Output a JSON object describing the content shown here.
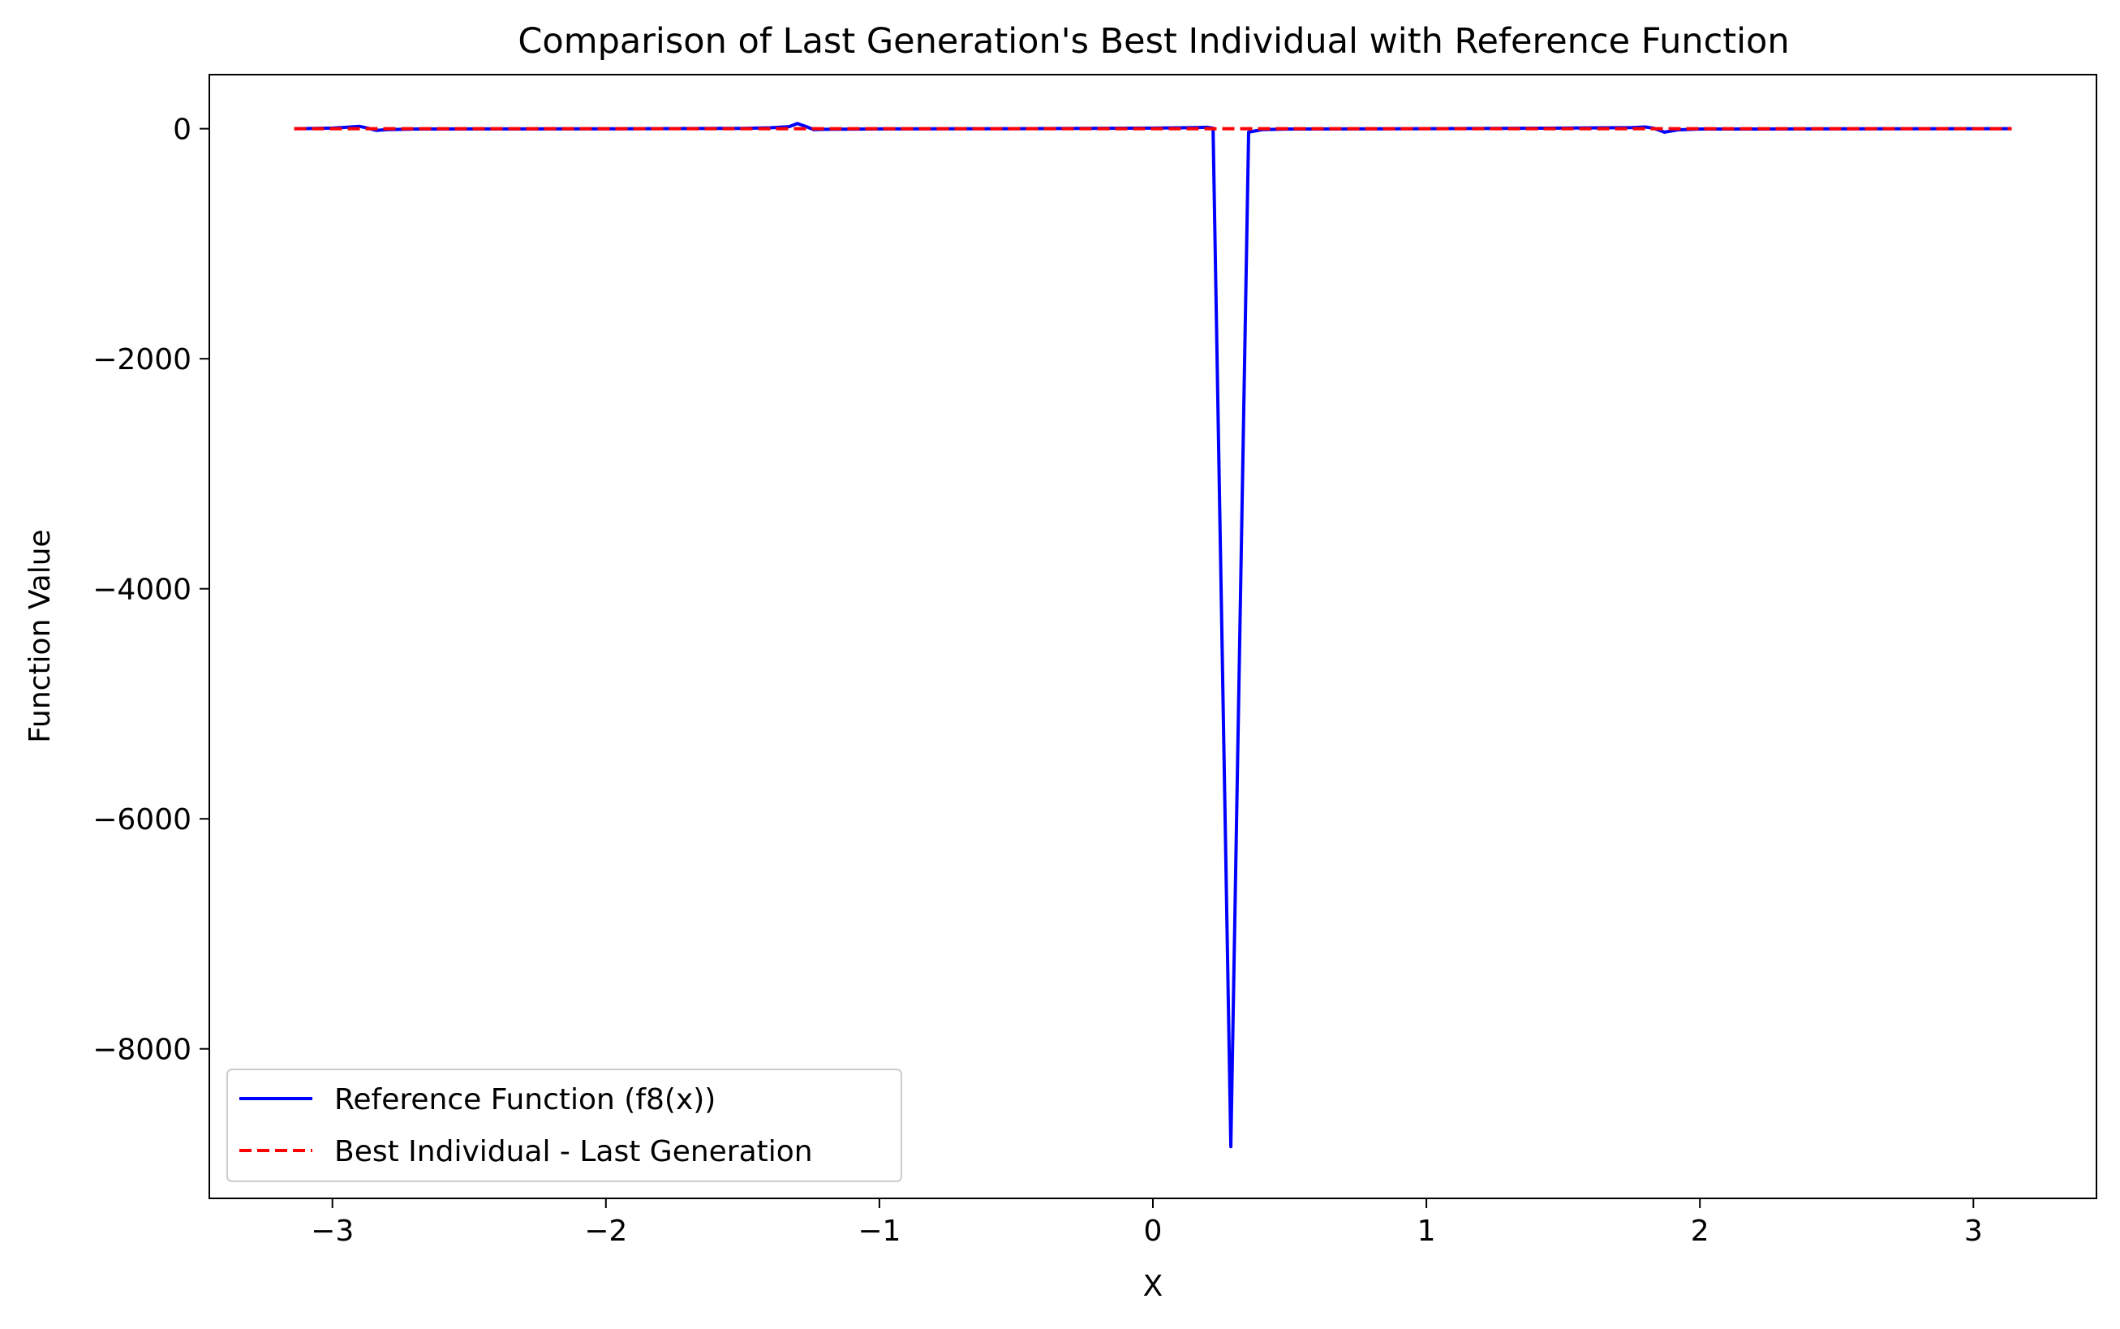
{
  "chart_data": {
    "type": "line",
    "title": "Comparison of Last Generation's Best Individual with Reference Function",
    "xlabel": "X",
    "ylabel": "Function Value",
    "xlim": [
      -3.45,
      3.45
    ],
    "ylim": [
      -9300,
      470
    ],
    "xticks": [
      -3,
      -2,
      -1,
      0,
      1,
      2,
      3
    ],
    "xtick_labels": [
      "−3",
      "−2",
      "−1",
      "0",
      "1",
      "2",
      "3"
    ],
    "yticks": [
      -8000,
      -6000,
      -4000,
      -2000,
      0
    ],
    "ytick_labels": [
      "−8000",
      "−6000",
      "−4000",
      "−2000",
      "0"
    ],
    "grid": false,
    "legend_position": "lower-left",
    "series": [
      {
        "name": "Reference Function (f8(x))",
        "color": "#0000ff",
        "style": "solid",
        "x": [
          -3.14,
          -3.0,
          -2.95,
          -2.9,
          -2.87,
          -2.84,
          -2.8,
          -2.7,
          -2.5,
          -2.0,
          -1.5,
          -1.4,
          -1.33,
          -1.3,
          -1.27,
          -1.24,
          -1.2,
          -1.0,
          -0.5,
          0.0,
          0.1,
          0.15,
          0.2,
          0.22,
          0.285,
          0.35,
          0.4,
          0.5,
          1.0,
          1.5,
          1.75,
          1.8,
          1.83,
          1.87,
          1.92,
          1.97,
          2.0,
          2.5,
          3.0,
          3.14
        ],
        "y": [
          0,
          5,
          12,
          20,
          5,
          -15,
          -8,
          -3,
          -2,
          -1,
          3,
          8,
          18,
          45,
          20,
          -8,
          -5,
          -2,
          0,
          5,
          8,
          10,
          12,
          5,
          -8850,
          -30,
          -8,
          -3,
          0,
          5,
          10,
          15,
          5,
          -30,
          -10,
          -5,
          -3,
          -1,
          0,
          0
        ]
      },
      {
        "name": "Best Individual - Last Generation",
        "color": "#ff0000",
        "style": "dashed",
        "x": [
          -3.14,
          -2.5,
          -2.0,
          -1.5,
          -1.0,
          -0.5,
          0.0,
          0.5,
          1.0,
          1.5,
          2.0,
          2.5,
          3.0,
          3.14
        ],
        "y": [
          0,
          0,
          0,
          0,
          0,
          0,
          0,
          0,
          0,
          0,
          0,
          0,
          0,
          0
        ]
      }
    ]
  }
}
